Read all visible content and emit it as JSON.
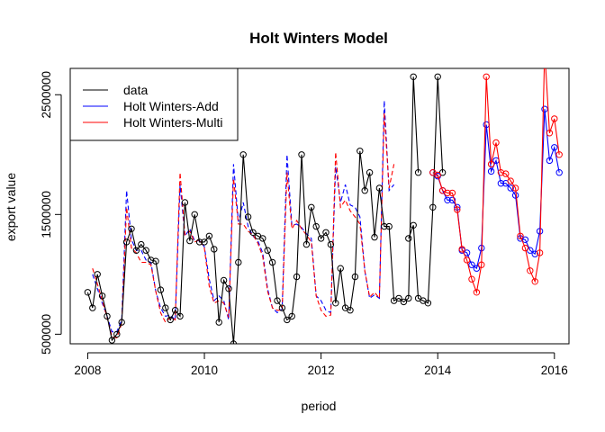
{
  "chart_data": {
    "type": "line",
    "title": "Holt Winters Model",
    "xlabel": "period",
    "ylabel": "export value",
    "xlim": [
      2007.7,
      2016.25
    ],
    "ylim": [
      420000,
      2720000
    ],
    "x_ticks": [
      2008,
      2010,
      2012,
      2014,
      2016
    ],
    "y_ticks": [
      500000,
      1500000,
      2500000
    ],
    "legend_position": "top-left",
    "grid": false,
    "start": 2008.0,
    "frequency": 12,
    "series": [
      {
        "name": "data",
        "color": "#000000",
        "style": "solid",
        "markers": true,
        "start": 2008.0,
        "values": [
          850000,
          720000,
          1000000,
          820000,
          650000,
          450000,
          500000,
          600000,
          1270000,
          1380000,
          1200000,
          1250000,
          1200000,
          1120000,
          1110000,
          870000,
          720000,
          620000,
          700000,
          650000,
          1600000,
          1280000,
          1500000,
          1270000,
          1270000,
          1320000,
          1210000,
          600000,
          950000,
          880000,
          420000,
          1100000,
          2000000,
          1480000,
          1350000,
          1320000,
          1300000,
          1200000,
          1100000,
          780000,
          720000,
          620000,
          650000,
          980000,
          2000000,
          1250000,
          1560000,
          1400000,
          1300000,
          1350000,
          1250000,
          760000,
          1050000,
          720000,
          700000,
          980000,
          2030000,
          1700000,
          1850000,
          1310000,
          1720000,
          1400000,
          1400000,
          780000,
          800000,
          770000,
          800000,
          2650000,
          1850000
        ]
      },
      {
        "name": "",
        "color": "#000000",
        "style": "solid",
        "markers": true,
        "start": 2013.5,
        "values": [
          1300000,
          1410000,
          800000,
          780000,
          760000,
          1560000,
          2650000,
          1850000
        ]
      },
      {
        "name": "Holt Winters-Add",
        "color": "#0000ff",
        "style": "solid",
        "markers": true,
        "start": 2013.917,
        "values": [
          1850000,
          1820000,
          1700000,
          1620000,
          1620000,
          1560000,
          1200000,
          1180000,
          1080000,
          1050000,
          1220000,
          2250000,
          1860000,
          1950000,
          1760000,
          1760000,
          1720000,
          1660000,
          1300000,
          1290000,
          1200000,
          1170000,
          1360000,
          2380000,
          1950000,
          2060000,
          1850000
        ]
      },
      {
        "name": "Holt Winters-Multi",
        "color": "#ff0000",
        "style": "solid",
        "markers": true,
        "start": 2013.917,
        "values": [
          1850000,
          1830000,
          1700000,
          1680000,
          1680000,
          1540000,
          1210000,
          1120000,
          960000,
          850000,
          1080000,
          2650000,
          1920000,
          2100000,
          1850000,
          1840000,
          1780000,
          1720000,
          1320000,
          1220000,
          1030000,
          940000,
          1180000,
          2870000,
          2180000,
          2300000,
          2000000
        ]
      },
      {
        "name": "",
        "color": "#0000ff",
        "style": "dashed",
        "markers": false,
        "start": 2008.083,
        "values": [
          1000000,
          880000,
          760000,
          650000,
          520000,
          520000,
          620000,
          1700000,
          1290000,
          1200000,
          1200000,
          1120000,
          1100000,
          860000,
          720000,
          650000,
          660000,
          620000,
          1750000,
          1320000,
          1380000,
          1280000,
          1280000,
          1230000,
          960000,
          780000,
          820000,
          780000,
          620000,
          1920000,
          1440000,
          1600000,
          1400000,
          1320000,
          1280000,
          1180000,
          880000,
          720000,
          680000,
          710000,
          2000000,
          1410000,
          1420000,
          1390000,
          1340000,
          1300000,
          820000,
          780000,
          700000,
          680000,
          1900000,
          1600000,
          1750000,
          1580000,
          1560000,
          1480000,
          1030000,
          800000,
          830000,
          800000,
          2450000,
          1700000,
          1750000
        ]
      },
      {
        "name": "",
        "color": "#ff0000",
        "style": "dashed",
        "markers": false,
        "start": 2008.083,
        "values": [
          1050000,
          920000,
          780000,
          640000,
          480000,
          470000,
          590000,
          1560000,
          1220000,
          1180000,
          1100000,
          1100000,
          1080000,
          860000,
          680000,
          600000,
          640000,
          620000,
          1850000,
          1330000,
          1360000,
          1270000,
          1290000,
          1220000,
          900000,
          760000,
          780000,
          760000,
          640000,
          1800000,
          1420000,
          1420000,
          1360000,
          1330000,
          1260000,
          1150000,
          860000,
          720000,
          700000,
          700000,
          1850000,
          1380000,
          1450000,
          1380000,
          1330000,
          1270000,
          820000,
          700000,
          650000,
          660000,
          2020000,
          1560000,
          1620000,
          1530000,
          1480000,
          1420000,
          1030000,
          810000,
          850000,
          800000,
          2350000,
          1720000,
          1920000
        ]
      }
    ]
  }
}
